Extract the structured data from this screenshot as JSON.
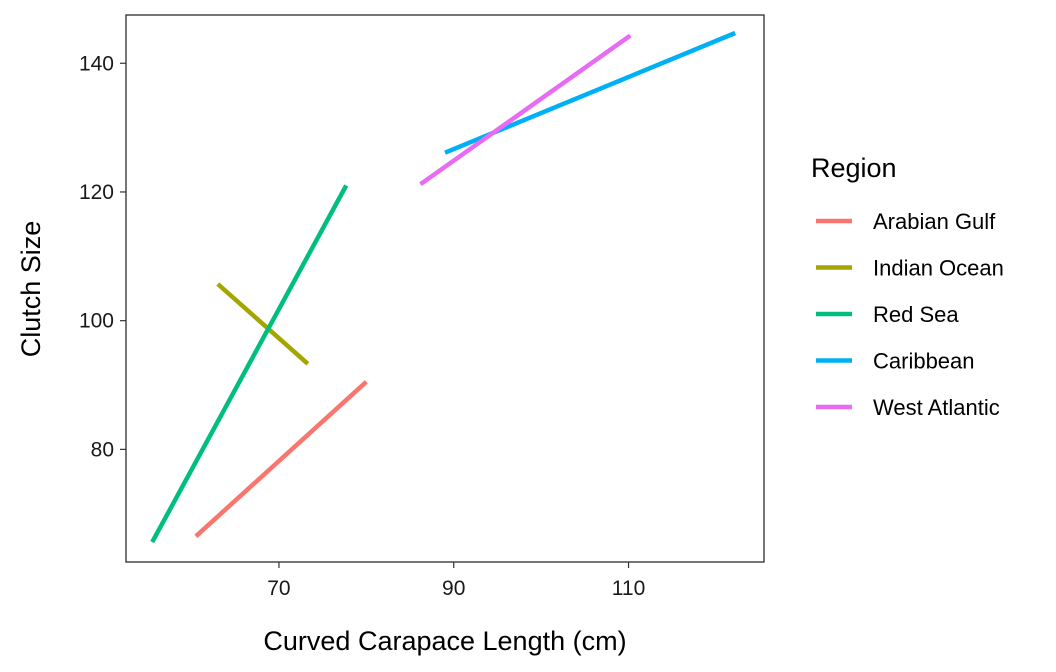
{
  "chart_data": {
    "type": "line",
    "title": "",
    "xlabel": "Curved Carapace Length (cm)",
    "ylabel": "Clutch Size",
    "xlim": [
      52.5,
      125.5
    ],
    "ylim": [
      62.5,
      147.5
    ],
    "x_ticks": [
      70,
      90,
      110
    ],
    "y_ticks": [
      80,
      100,
      120,
      140
    ],
    "grid": false,
    "legend_title": "Region",
    "legend_position": "right",
    "series": [
      {
        "name": "Arabian Gulf",
        "color": "#F8766D",
        "x": [
          60.5,
          80.0
        ],
        "y": [
          66.5,
          90.5
        ]
      },
      {
        "name": "Indian Ocean",
        "color": "#A3A500",
        "x": [
          63.0,
          73.3
        ],
        "y": [
          105.7,
          93.3
        ]
      },
      {
        "name": "Red Sea",
        "color": "#00BF7D",
        "x": [
          55.5,
          77.7
        ],
        "y": [
          65.6,
          121.0
        ]
      },
      {
        "name": "Caribbean",
        "color": "#00B0F6",
        "x": [
          89.0,
          122.2
        ],
        "y": [
          126.1,
          144.7
        ]
      },
      {
        "name": "West Atlantic",
        "color": "#E76BF3",
        "x": [
          86.2,
          110.2
        ],
        "y": [
          121.2,
          144.3
        ]
      }
    ]
  }
}
